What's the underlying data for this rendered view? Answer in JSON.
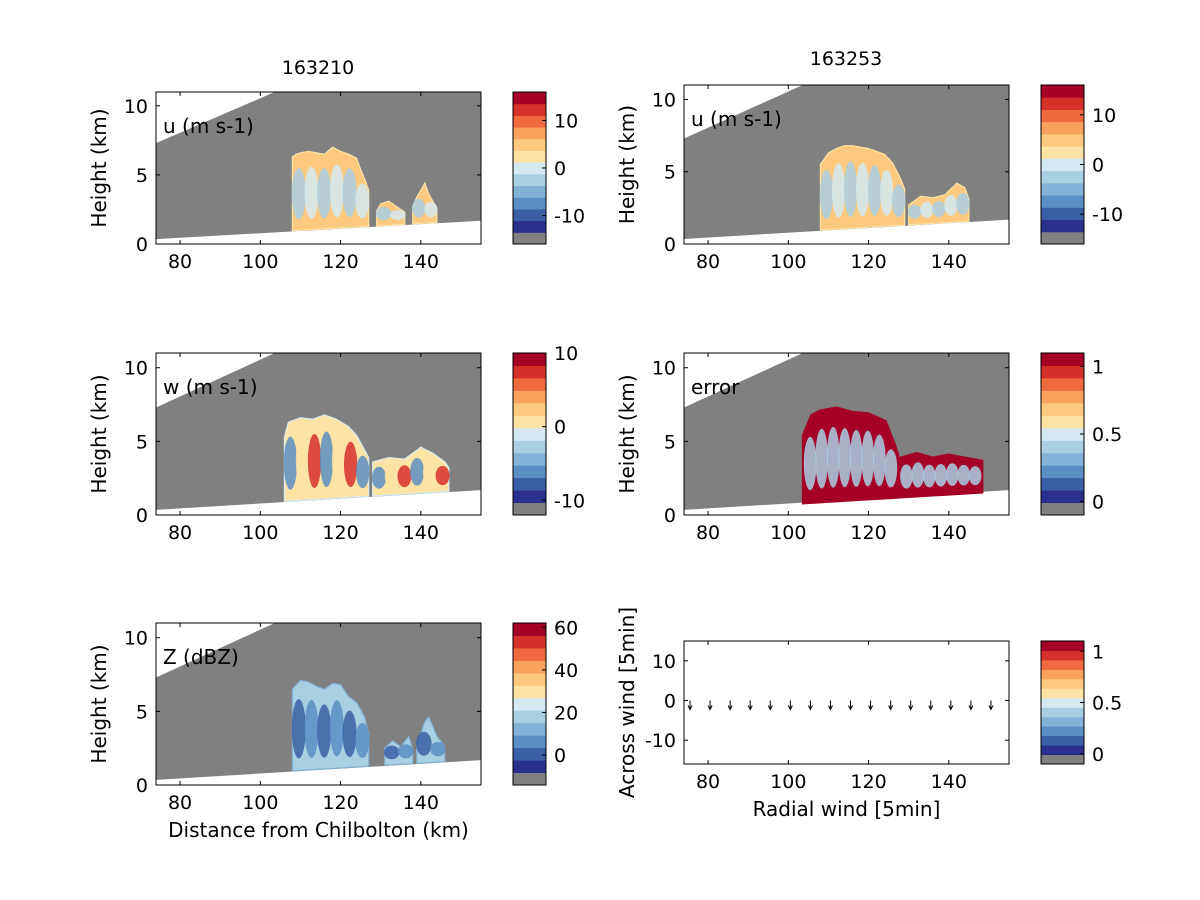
{
  "figure": {
    "column_titles": [
      "163210",
      "163253"
    ]
  },
  "colorscale": [
    "#2b2f8e",
    "#3a5fa5",
    "#5b8fc3",
    "#84b2d6",
    "#a9cfe3",
    "#d4e9f1",
    "#fde4a5",
    "#fcc97e",
    "#f9a25e",
    "#ef6a3e",
    "#d6302a",
    "#a50026"
  ],
  "colors": {
    "missing": "#808080",
    "axis": "#000000"
  },
  "chart_data": [
    {
      "type": "heatmap",
      "title": "163210",
      "label": "u (m s-1)",
      "ylabel": "Height (km)",
      "xlabel": "",
      "xlim": [
        74,
        155
      ],
      "ylim": [
        0,
        11
      ],
      "xticks": [
        80,
        100,
        120,
        140
      ],
      "yticks": [
        0,
        5,
        10
      ],
      "colorbar": {
        "range": [
          -16,
          16
        ],
        "ticks": [
          10,
          0,
          -10
        ]
      },
      "echo": [
        {
          "x": [
            108,
            109,
            110,
            112,
            114,
            116,
            118,
            120,
            122,
            124,
            125,
            126,
            127
          ],
          "top": [
            6.3,
            6.5,
            6.6,
            6.7,
            6.6,
            6.5,
            7.0,
            6.7,
            6.5,
            6.2,
            5.4,
            4.7,
            3.9
          ]
        },
        {
          "x": [
            129,
            130,
            132,
            134,
            136
          ],
          "top": [
            2.4,
            2.9,
            3.1,
            2.7,
            2.3
          ]
        },
        {
          "x": [
            138,
            139,
            141,
            142,
            144
          ],
          "top": [
            2.7,
            3.4,
            4.4,
            3.6,
            2.6
          ]
        }
      ],
      "dominant_value": 3
    },
    {
      "type": "heatmap",
      "title": "163253",
      "label": "u (m s-1)",
      "ylabel": "Height (km)",
      "xlabel": "",
      "xlim": [
        74,
        155
      ],
      "ylim": [
        0,
        11
      ],
      "xticks": [
        80,
        100,
        120,
        140
      ],
      "yticks": [
        0,
        5,
        10
      ],
      "colorbar": {
        "range": [
          -16,
          16
        ],
        "ticks": [
          10,
          0,
          -10
        ]
      },
      "echo": [
        {
          "x": [
            108,
            110,
            112,
            114,
            116,
            118,
            120,
            122,
            124,
            126,
            128,
            129
          ],
          "top": [
            5.5,
            6.3,
            6.6,
            6.8,
            6.8,
            6.7,
            6.6,
            6.4,
            6.2,
            5.6,
            4.5,
            3.8
          ]
        },
        {
          "x": [
            130,
            133,
            136,
            139,
            142,
            144,
            145
          ],
          "top": [
            2.7,
            3.3,
            3.2,
            3.4,
            4.2,
            3.9,
            3.1
          ]
        }
      ],
      "dominant_value": 3
    },
    {
      "type": "heatmap",
      "title": "",
      "label": "w (m s-1)",
      "ylabel": "Height (km)",
      "xlabel": "",
      "xlim": [
        74,
        155
      ],
      "ylim": [
        0,
        11
      ],
      "xticks": [
        80,
        100,
        120,
        140
      ],
      "yticks": [
        0,
        5,
        10
      ],
      "colorbar": {
        "range": [
          -12,
          10
        ],
        "ticks": [
          10,
          0,
          -10
        ]
      },
      "echo": [
        {
          "x": [
            106,
            107,
            110,
            113,
            116,
            119,
            122,
            124,
            126,
            127
          ],
          "top": [
            5.3,
            6.3,
            6.6,
            6.5,
            6.8,
            6.5,
            6.0,
            5.4,
            4.4,
            3.9
          ]
        },
        {
          "x": [
            128,
            132,
            136,
            140,
            143,
            146,
            147
          ],
          "top": [
            3.6,
            3.9,
            3.8,
            4.6,
            4.2,
            3.6,
            3.2
          ]
        }
      ],
      "dominant_value": 0
    },
    {
      "type": "heatmap",
      "title": "",
      "label": "error",
      "ylabel": "Height (km)",
      "xlabel": "",
      "xlim": [
        74,
        155
      ],
      "ylim": [
        0,
        11
      ],
      "xticks": [
        80,
        100,
        120,
        140
      ],
      "yticks": [
        0,
        5,
        10
      ],
      "colorbar": {
        "range": [
          -0.1,
          1.1
        ],
        "ticks": [
          1,
          0.5,
          0
        ]
      },
      "echo": [
        {
          "x": [
            104,
            106,
            108,
            112,
            116,
            120,
            124,
            126,
            127
          ],
          "top": [
            5.4,
            6.7,
            7.0,
            7.2,
            6.9,
            6.8,
            6.3,
            4.9,
            4.1
          ]
        },
        {
          "x": [
            128,
            132,
            136,
            140,
            144,
            148
          ],
          "top": [
            3.8,
            4.1,
            3.8,
            4.0,
            3.8,
            3.6
          ]
        }
      ],
      "dominant_value": 1.05
    },
    {
      "type": "heatmap",
      "title": "",
      "label": "Z (dBZ)",
      "ylabel": "Height (km)",
      "xlabel": "Distance from Chilbolton (km)",
      "xlim": [
        74,
        155
      ],
      "ylim": [
        0,
        11
      ],
      "xticks": [
        80,
        100,
        120,
        140
      ],
      "yticks": [
        0,
        5,
        10
      ],
      "colorbar": {
        "range": [
          -14,
          62
        ],
        "ticks": [
          60,
          40,
          20,
          0
        ]
      },
      "echo": [
        {
          "x": [
            108,
            110,
            112,
            114,
            116,
            118,
            120,
            122,
            124,
            126,
            127
          ],
          "top": [
            6.5,
            7.1,
            7.0,
            6.7,
            6.5,
            6.9,
            6.8,
            6.0,
            5.6,
            4.6,
            3.5
          ]
        },
        {
          "x": [
            131,
            133,
            135,
            137,
            138
          ],
          "top": [
            2.5,
            3.0,
            2.6,
            3.3,
            2.4
          ]
        },
        {
          "x": [
            139,
            141,
            142,
            144,
            146
          ],
          "top": [
            2.6,
            4.3,
            4.6,
            3.3,
            2.6
          ]
        }
      ],
      "dominant_value": 15
    },
    {
      "type": "quiver",
      "title": "",
      "label": "",
      "ylabel": "Across wind [5min]",
      "xlabel": "Radial wind [5min]",
      "xlim": [
        74,
        155
      ],
      "ylim": [
        -16,
        15
      ],
      "xticks": [
        80,
        100,
        120,
        140
      ],
      "yticks": [
        10,
        0,
        -10
      ],
      "colorbar": {
        "range": [
          -0.1,
          1.1
        ],
        "ticks": [
          1,
          0.5,
          0
        ]
      },
      "arrow_x": [
        75.5,
        80.5,
        85.5,
        90.5,
        95.5,
        100.5,
        105.5,
        110.5,
        115.5,
        120.5,
        125.5,
        130.5,
        135.5,
        140.5,
        145.5,
        150.5
      ],
      "arrow_y": -1
    }
  ]
}
